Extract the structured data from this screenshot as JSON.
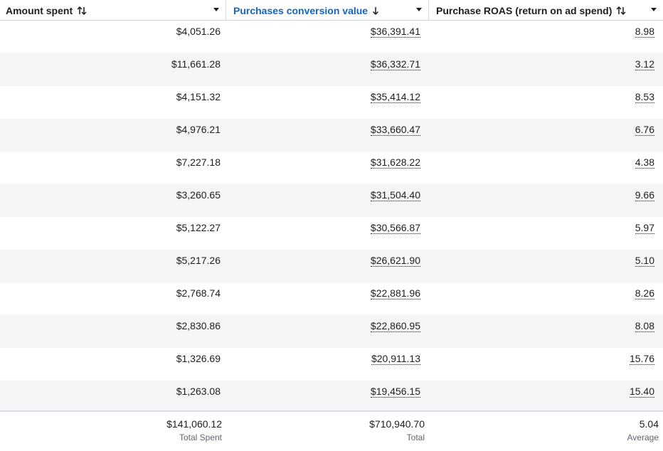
{
  "columns": [
    {
      "label": "Amount spent",
      "sort": "both"
    },
    {
      "label": "Purchases conversion value",
      "sort": "desc"
    },
    {
      "label": "Purchase ROAS (return on ad spend)",
      "sort": "both"
    }
  ],
  "rows": [
    [
      "$4,051.26",
      "$36,391.41",
      "8.98"
    ],
    [
      "$11,661.28",
      "$36,332.71",
      "3.12"
    ],
    [
      "$4,151.32",
      "$35,414.12",
      "8.53"
    ],
    [
      "$4,976.21",
      "$33,660.47",
      "6.76"
    ],
    [
      "$7,227.18",
      "$31,628.22",
      "4.38"
    ],
    [
      "$3,260.65",
      "$31,504.40",
      "9.66"
    ],
    [
      "$5,122.27",
      "$30,566.87",
      "5.97"
    ],
    [
      "$5,217.26",
      "$26,621.90",
      "5.10"
    ],
    [
      "$2,768.74",
      "$22,881.96",
      "8.26"
    ],
    [
      "$2,830.86",
      "$22,860.95",
      "8.08"
    ],
    [
      "$1,326.69",
      "$20,911.13",
      "15.76"
    ],
    [
      "$1,263.08",
      "$19,456.15",
      "15.40"
    ]
  ],
  "footer": [
    {
      "value": "$141,060.12",
      "label": "Total Spent"
    },
    {
      "value": "$710,940.70",
      "label": "Total"
    },
    {
      "value": "5.04",
      "label": "Average"
    }
  ],
  "colors": {
    "active_header": "#1565c0",
    "row_alt": "#f5f6f8",
    "text": "#1c1e21",
    "muted": "#606770"
  }
}
